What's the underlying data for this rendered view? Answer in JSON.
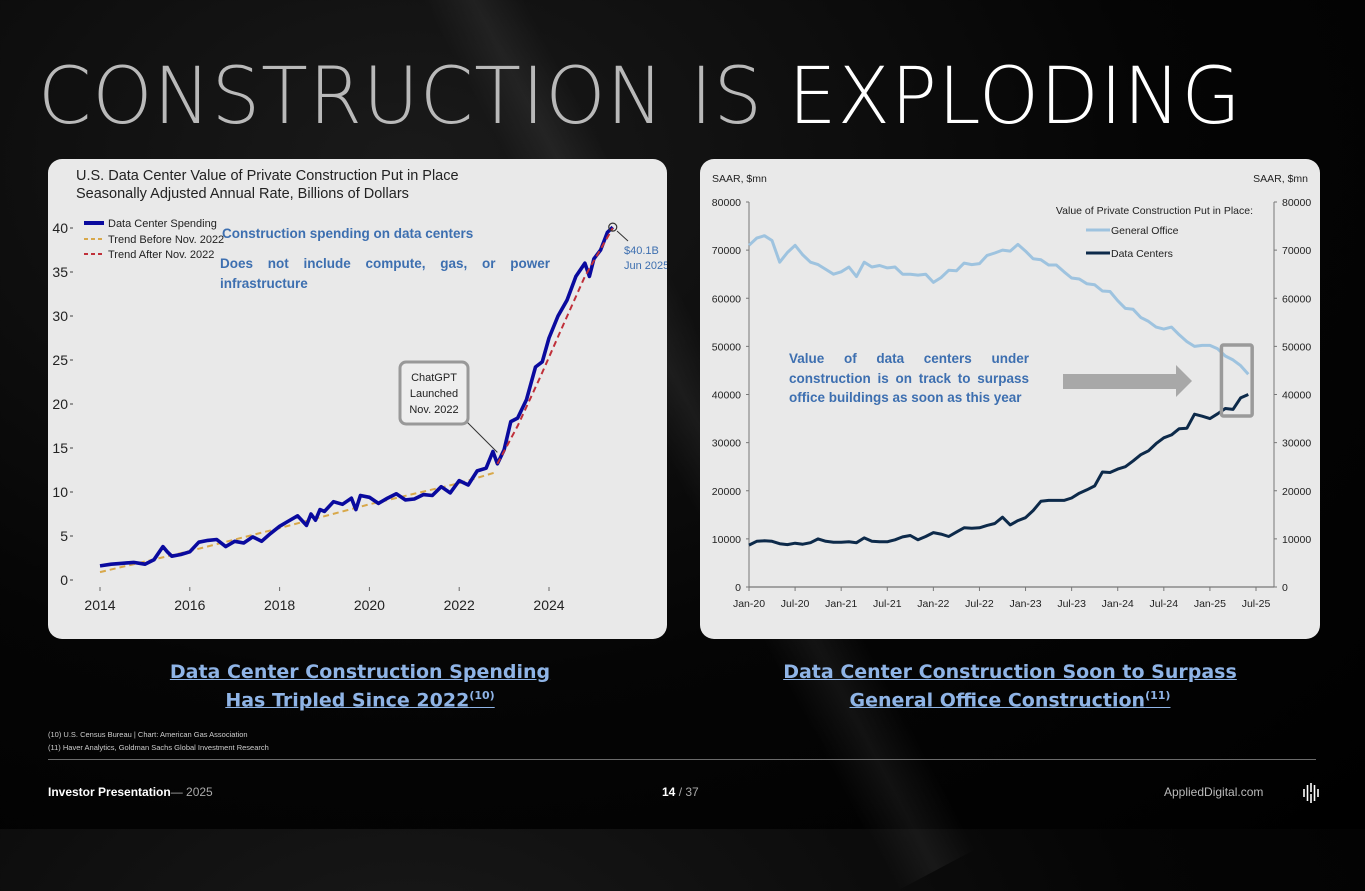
{
  "slide": {
    "title_part1": "CONSTRUCTION IS ",
    "title_part2": "EXPLODING",
    "captions": {
      "left_line1": "Data Center Construction Spending",
      "left_line2": "Has Tripled Since 2022",
      "left_ref": "(10)",
      "right_line1": "Data Center Construction Soon to Surpass",
      "right_line2": "General Office Construction",
      "right_ref": "(11)"
    },
    "footnotes": [
      "(10) U.S. Census Bureau  | Chart: American Gas Association",
      "(11) Haver Analytics, Goldman Sachs Global Investment Research"
    ],
    "footer": {
      "presentation": "Investor Presentation",
      "separator_year": "— 2025",
      "page_current": "14",
      "page_total": " / 37",
      "site": "AppliedDigital.com",
      "logo_icon": "applied-digital-logo-icon"
    },
    "colors": {
      "caption_blue": "#8fb4e6",
      "annotation_blue": "#3d6fb0",
      "dc_spending": "#0a0a9e",
      "trend_before": "#d8a84a",
      "trend_after": "#c0303a",
      "general_office": "#9ec3df",
      "data_centers": "#0d2a4a"
    }
  },
  "chart_data": [
    {
      "type": "line",
      "title": "U.S. Data Center Value of Private Construction Put in Place",
      "subtitle": "Seasonally Adjusted Annual Rate, Billions of Dollars",
      "xlabel": "",
      "ylabel": "",
      "xlim": [
        2014,
        2025.6
      ],
      "ylim": [
        0,
        40
      ],
      "x_ticks": [
        "2014",
        "2016",
        "2018",
        "2020",
        "2022",
        "2024"
      ],
      "x_tick_values": [
        2014,
        2016,
        2018,
        2020,
        2022,
        2024
      ],
      "y_ticks": [
        0,
        5,
        10,
        15,
        20,
        25,
        30,
        35,
        40
      ],
      "legend": [
        "Data Center Spending",
        "Trend Before Nov. 2022",
        "Trend After Nov. 2022"
      ],
      "legend_position": "top-left",
      "grid": false,
      "annotations": {
        "text1": "Construction spending on data centers",
        "text2": "Does not include compute, gas, or power infrastructure",
        "chatgpt_line1": "ChatGPT",
        "chatgpt_line2": "Launched",
        "chatgpt_line3": "Nov. 2022",
        "chatgpt_x": 2022.85,
        "chatgpt_y": 14.5,
        "peak_line1": "$40.1B",
        "peak_line2": "Jun 2025",
        "peak_x": 2025.42,
        "peak_y": 40.1
      },
      "series": [
        {
          "name": "Data Center Spending",
          "x": [
            2014.0,
            2014.25,
            2014.5,
            2014.75,
            2015.0,
            2015.2,
            2015.4,
            2015.5,
            2015.6,
            2015.8,
            2016.0,
            2016.2,
            2016.4,
            2016.6,
            2016.8,
            2017.0,
            2017.2,
            2017.4,
            2017.6,
            2017.8,
            2018.0,
            2018.2,
            2018.4,
            2018.6,
            2018.7,
            2018.8,
            2018.9,
            2019.0,
            2019.2,
            2019.4,
            2019.6,
            2019.7,
            2019.8,
            2020.0,
            2020.2,
            2020.4,
            2020.6,
            2020.8,
            2021.0,
            2021.2,
            2021.4,
            2021.6,
            2021.8,
            2022.0,
            2022.2,
            2022.4,
            2022.6,
            2022.75,
            2022.85,
            2023.0,
            2023.15,
            2023.3,
            2023.5,
            2023.7,
            2023.85,
            2024.0,
            2024.2,
            2024.4,
            2024.6,
            2024.8,
            2024.9,
            2025.0,
            2025.15,
            2025.3,
            2025.42
          ],
          "values": [
            1.6,
            1.8,
            1.9,
            2.0,
            1.8,
            2.3,
            3.8,
            3.2,
            2.7,
            2.9,
            3.2,
            4.3,
            4.5,
            4.6,
            3.8,
            4.4,
            4.2,
            4.9,
            4.4,
            5.3,
            6.1,
            6.7,
            7.3,
            6.2,
            7.5,
            6.8,
            8.0,
            7.8,
            8.9,
            8.6,
            9.3,
            8.0,
            9.6,
            9.4,
            8.7,
            9.3,
            9.8,
            9.1,
            9.2,
            9.7,
            9.6,
            10.6,
            9.9,
            11.3,
            10.8,
            12.4,
            12.7,
            14.6,
            13.2,
            14.8,
            18.0,
            18.4,
            20.5,
            24.2,
            24.8,
            27.5,
            30.0,
            31.8,
            34.5,
            36.0,
            34.5,
            36.5,
            37.5,
            39.5,
            40.1
          ]
        },
        {
          "name": "Trend Before Nov. 2022",
          "x": [
            2014.0,
            2016.0,
            2018.0,
            2020.0,
            2022.0,
            2022.85
          ],
          "values": [
            0.9,
            3.3,
            5.9,
            8.6,
            11.0,
            12.3
          ]
        },
        {
          "name": "Trend After Nov. 2022",
          "x": [
            2022.85,
            2023.3,
            2023.8,
            2024.3,
            2024.8,
            2025.42
          ],
          "values": [
            13.2,
            17.5,
            23.0,
            28.8,
            34.5,
            40.0
          ]
        }
      ]
    },
    {
      "type": "line",
      "title": "Value of Private Construction Put in Place:",
      "xlabel": "",
      "ylabel_left": "SAAR, $mn",
      "ylabel_right": "SAAR, $mn",
      "ylim": [
        0,
        80000
      ],
      "y_ticks": [
        0,
        10000,
        20000,
        30000,
        40000,
        50000,
        60000,
        70000,
        80000
      ],
      "x_ticks": [
        "Jan-20",
        "Jul-20",
        "Jan-21",
        "Jul-21",
        "Jan-22",
        "Jul-22",
        "Jan-23",
        "Jul-23",
        "Jan-24",
        "Jul-24",
        "Jan-25",
        "Jul-25"
      ],
      "xlim_months": [
        0,
        66
      ],
      "legend": [
        "General Office",
        "Data Centers"
      ],
      "legend_position": "top-right",
      "grid": false,
      "annotations": {
        "text": "Value of data centers under construction is on track to surpass office buildings as soon as this year",
        "arrow": "right-arrow",
        "highlight_box_months": [
          61.5,
          65.5
        ]
      },
      "series": [
        {
          "name": "General Office",
          "months": [
            0,
            1,
            2,
            3,
            4,
            5,
            6,
            7,
            8,
            9,
            10,
            11,
            12,
            13,
            14,
            15,
            16,
            17,
            18,
            19,
            20,
            21,
            22,
            23,
            24,
            25,
            26,
            27,
            28,
            29,
            30,
            31,
            32,
            33,
            34,
            35,
            36,
            37,
            38,
            39,
            40,
            41,
            42,
            43,
            44,
            45,
            46,
            47,
            48,
            49,
            50,
            51,
            52,
            53,
            54,
            55,
            56,
            57,
            58,
            59,
            60,
            61,
            62,
            63,
            64,
            65
          ],
          "values": [
            71000,
            72500,
            73000,
            72000,
            67500,
            69500,
            71000,
            69000,
            67500,
            67000,
            66000,
            65000,
            65500,
            66500,
            64500,
            67500,
            66500,
            66800,
            66300,
            66500,
            65000,
            65000,
            64800,
            65000,
            63300,
            64300,
            65800,
            65700,
            67300,
            67000,
            67200,
            68900,
            69400,
            70000,
            69800,
            71200,
            69800,
            68200,
            68000,
            66900,
            66900,
            65500,
            64200,
            64000,
            63000,
            62800,
            61500,
            61400,
            59500,
            57900,
            57700,
            56000,
            55200,
            54000,
            53600,
            54000,
            52400,
            51000,
            50000,
            50200,
            50200,
            49500,
            48000,
            47200,
            46000,
            44200
          ]
        },
        {
          "name": "Data Centers",
          "months": [
            0,
            1,
            2,
            3,
            4,
            5,
            6,
            7,
            8,
            9,
            10,
            11,
            12,
            13,
            14,
            15,
            16,
            17,
            18,
            19,
            20,
            21,
            22,
            23,
            24,
            25,
            26,
            27,
            28,
            29,
            30,
            31,
            32,
            33,
            34,
            35,
            36,
            37,
            38,
            39,
            40,
            41,
            42,
            43,
            44,
            45,
            46,
            47,
            48,
            49,
            50,
            51,
            52,
            53,
            54,
            55,
            56,
            57,
            58,
            59,
            60,
            61,
            62,
            63,
            64,
            65
          ],
          "values": [
            8700,
            9500,
            9600,
            9500,
            9000,
            8800,
            9100,
            8900,
            9200,
            10000,
            9500,
            9300,
            9300,
            9400,
            9200,
            10200,
            9500,
            9400,
            9400,
            9800,
            10400,
            10700,
            9800,
            10500,
            11300,
            11000,
            10500,
            11400,
            12300,
            12200,
            12300,
            12800,
            13200,
            14500,
            12900,
            13800,
            14400,
            15900,
            17800,
            18000,
            18000,
            18000,
            18500,
            19500,
            20200,
            21000,
            23900,
            23800,
            24500,
            25000,
            26200,
            27500,
            28300,
            29800,
            31000,
            31600,
            32900,
            33000,
            35900,
            35500,
            35000,
            36000,
            37100,
            36900,
            39300,
            40000
          ]
        }
      ]
    }
  ]
}
